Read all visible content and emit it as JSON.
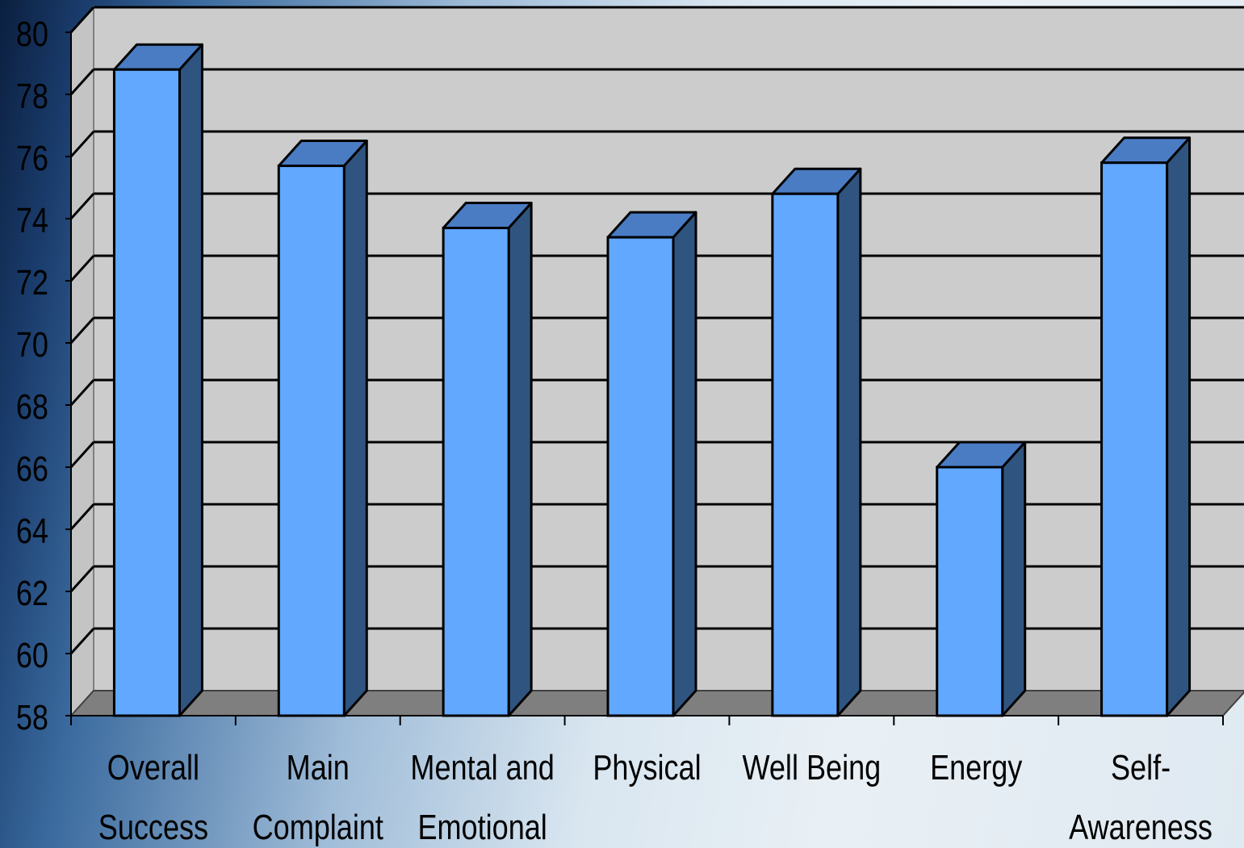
{
  "chart_data": {
    "type": "bar",
    "title": "",
    "xlabel": "",
    "ylabel": "",
    "categories": [
      [
        "Overall",
        "Success"
      ],
      [
        "Main",
        "Complaint"
      ],
      [
        "Mental and",
        "Emotional"
      ],
      [
        "Physical"
      ],
      [
        "Well Being"
      ],
      [
        "Energy"
      ],
      [
        "Self-",
        "Awareness"
      ]
    ],
    "values": [
      78.8,
      75.7,
      73.7,
      73.4,
      74.8,
      66.0,
      75.8
    ],
    "ylim": [
      58,
      80
    ],
    "yticks": [
      "58",
      "60",
      "62",
      "64",
      "66",
      "68",
      "70",
      "72",
      "74",
      "76",
      "78",
      "80"
    ],
    "grid": true,
    "three_d": true,
    "colors": {
      "bar_front": "#62a8ff",
      "bar_top": "#4a7cc4",
      "bar_side": "#2f5480",
      "wall": "#cccccc",
      "floor": "#7f7f7f",
      "grid": "#000000"
    }
  }
}
